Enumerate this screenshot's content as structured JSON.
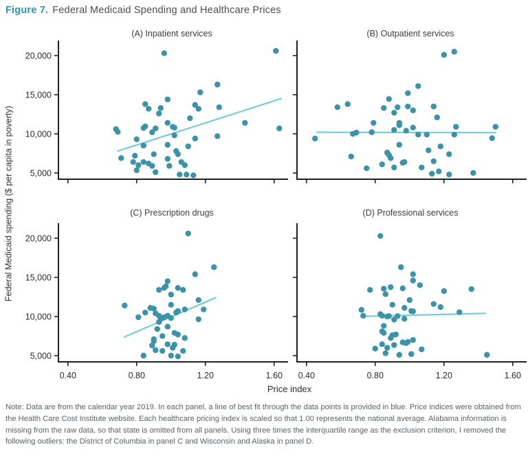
{
  "title": {
    "prefix": "Figure 7.",
    "text": "Federal Medicaid Spending and Healthcare Prices"
  },
  "note": "Note: Data are from the calendar year 2019. In each panel, a line of best fit through the data points is provided in blue. Price indices were obtained from the Health Care Cost Institute website. Each healthcare pricing index is scaled so that 1.00 represents the national average. Alabama information is missing from the raw data, so that state is omitted from all panels. Using three times the interquartile range as the exclusion criterion, I removed the following outliers: the District of Columbia in panel C and Wisconsin and Alaska in panel D.",
  "chart_data": {
    "type": "scatter",
    "layout": "2x2-grid",
    "xlabel": "Price index",
    "ylabel": "Federal Medicaid spending ($ per capita in poverty)",
    "x_ticks": [
      0.4,
      0.8,
      1.2,
      1.6
    ],
    "x_tick_labels": [
      "0.40",
      "0.80",
      "1.20",
      "1.60"
    ],
    "y_ticks": [
      5000,
      10000,
      15000,
      20000
    ],
    "y_tick_labels": [
      "5,000",
      "10,000",
      "15,000",
      "20,000"
    ],
    "xlim": [
      0.345,
      1.665
    ],
    "ylim": [
      4200,
      21400
    ],
    "grid": false,
    "colors": {
      "point": "#3b92a9",
      "fit_line": "#74cdda",
      "axis": "#1f1f1f",
      "accent": "#2e96ad"
    },
    "panels": [
      {
        "label": "(A) Inpatient services",
        "fit_line": {
          "x": [
            0.69,
            1.64
          ],
          "y": [
            7800,
            14500
          ]
        },
        "points": [
          [
            0.68,
            10600
          ],
          [
            0.69,
            10250
          ],
          [
            0.71,
            6900
          ],
          [
            0.78,
            6400
          ],
          [
            0.79,
            7200
          ],
          [
            0.8,
            9300
          ],
          [
            0.8,
            5350
          ],
          [
            0.81,
            6000
          ],
          [
            0.84,
            10750
          ],
          [
            0.84,
            8500
          ],
          [
            0.84,
            6400
          ],
          [
            0.85,
            13800
          ],
          [
            0.85,
            10950
          ],
          [
            0.87,
            13200
          ],
          [
            0.87,
            6200
          ],
          [
            0.89,
            10200
          ],
          [
            0.89,
            5900
          ],
          [
            0.9,
            7400
          ],
          [
            0.91,
            10700
          ],
          [
            0.91,
            5100
          ],
          [
            0.93,
            12600
          ],
          [
            0.94,
            13300
          ],
          [
            0.96,
            20300
          ],
          [
            0.98,
            14400
          ],
          [
            0.98,
            11400
          ],
          [
            0.98,
            8600
          ],
          [
            0.98,
            6800
          ],
          [
            0.99,
            5900
          ],
          [
            1.01,
            10900
          ],
          [
            1.02,
            10800
          ],
          [
            1.02,
            9800
          ],
          [
            1.03,
            7800
          ],
          [
            1.04,
            7400
          ],
          [
            1.05,
            4800
          ],
          [
            1.06,
            6400
          ],
          [
            1.08,
            6000
          ],
          [
            1.09,
            4800
          ],
          [
            1.1,
            8400
          ],
          [
            1.11,
            12000
          ],
          [
            1.13,
            4700
          ],
          [
            1.14,
            13700
          ],
          [
            1.14,
            9400
          ],
          [
            1.16,
            13200
          ],
          [
            1.17,
            15300
          ],
          [
            1.27,
            16300
          ],
          [
            1.27,
            9700
          ],
          [
            1.28,
            13400
          ],
          [
            1.43,
            11400
          ],
          [
            1.61,
            20600
          ],
          [
            1.63,
            10700
          ]
        ]
      },
      {
        "label": "(B) Outpatient services",
        "fit_line": {
          "x": [
            0.46,
            1.5
          ],
          "y": [
            10200,
            10150
          ]
        },
        "points": [
          [
            0.45,
            9400
          ],
          [
            0.58,
            13400
          ],
          [
            0.64,
            13800
          ],
          [
            0.66,
            7100
          ],
          [
            0.67,
            10000
          ],
          [
            0.69,
            10150
          ],
          [
            0.75,
            5600
          ],
          [
            0.78,
            10200
          ],
          [
            0.79,
            11400
          ],
          [
            0.84,
            6100
          ],
          [
            0.85,
            13300
          ],
          [
            0.87,
            7600
          ],
          [
            0.88,
            14450
          ],
          [
            0.88,
            7300
          ],
          [
            0.89,
            6900
          ],
          [
            0.91,
            12700
          ],
          [
            0.91,
            10500
          ],
          [
            0.91,
            5700
          ],
          [
            0.93,
            13400
          ],
          [
            0.94,
            11400
          ],
          [
            0.94,
            11100
          ],
          [
            0.94,
            8600
          ],
          [
            0.96,
            6300
          ],
          [
            0.97,
            6400
          ],
          [
            0.98,
            10400
          ],
          [
            0.99,
            15200
          ],
          [
            0.99,
            13500
          ],
          [
            1.02,
            13000
          ],
          [
            1.02,
            10800
          ],
          [
            1.05,
            16100
          ],
          [
            1.05,
            9900
          ],
          [
            1.07,
            5700
          ],
          [
            1.1,
            9900
          ],
          [
            1.11,
            7900
          ],
          [
            1.13,
            4900
          ],
          [
            1.14,
            13500
          ],
          [
            1.14,
            6500
          ],
          [
            1.16,
            12100
          ],
          [
            1.17,
            5200
          ],
          [
            1.18,
            8400
          ],
          [
            1.2,
            20100
          ],
          [
            1.23,
            7400
          ],
          [
            1.23,
            4800
          ],
          [
            1.26,
            20500
          ],
          [
            1.26,
            9900
          ],
          [
            1.27,
            10900
          ],
          [
            1.37,
            5000
          ],
          [
            1.48,
            9450
          ],
          [
            1.5,
            10900
          ]
        ]
      },
      {
        "label": "(C) Prescription drugs",
        "fit_line": {
          "x": [
            0.73,
            1.26
          ],
          "y": [
            7400,
            12400
          ]
        },
        "points": [
          [
            0.73,
            11400
          ],
          [
            0.81,
            9900
          ],
          [
            0.84,
            5000
          ],
          [
            0.85,
            10500
          ],
          [
            0.88,
            11100
          ],
          [
            0.89,
            6300
          ],
          [
            0.9,
            11000
          ],
          [
            0.9,
            7100
          ],
          [
            0.9,
            6850
          ],
          [
            0.91,
            10400
          ],
          [
            0.91,
            5700
          ],
          [
            0.92,
            8400
          ],
          [
            0.93,
            13400
          ],
          [
            0.93,
            10100
          ],
          [
            0.93,
            9300
          ],
          [
            0.94,
            9700
          ],
          [
            0.95,
            7500
          ],
          [
            0.95,
            5600
          ],
          [
            0.96,
            13650
          ],
          [
            0.96,
            9900
          ],
          [
            0.97,
            13850
          ],
          [
            0.98,
            14500
          ],
          [
            0.98,
            10100
          ],
          [
            0.98,
            8700
          ],
          [
            0.98,
            6450
          ],
          [
            1.0,
            12800
          ],
          [
            1.0,
            11500
          ],
          [
            1.0,
            9800
          ],
          [
            1.0,
            5000
          ],
          [
            1.01,
            6000
          ],
          [
            1.02,
            7900
          ],
          [
            1.02,
            6400
          ],
          [
            1.03,
            10500
          ],
          [
            1.04,
            13650
          ],
          [
            1.04,
            10700
          ],
          [
            1.04,
            7700
          ],
          [
            1.04,
            4900
          ],
          [
            1.07,
            13400
          ],
          [
            1.07,
            5600
          ],
          [
            1.08,
            10900
          ],
          [
            1.08,
            7250
          ],
          [
            1.1,
            20600
          ],
          [
            1.14,
            15400
          ],
          [
            1.16,
            12100
          ],
          [
            1.16,
            9650
          ],
          [
            1.19,
            10900
          ],
          [
            1.25,
            16300
          ]
        ]
      },
      {
        "label": "(D) Professional services",
        "fit_line": {
          "x": [
            0.72,
            1.44
          ],
          "y": [
            10000,
            10400
          ]
        },
        "points": [
          [
            0.72,
            10850
          ],
          [
            0.73,
            10100
          ],
          [
            0.77,
            13400
          ],
          [
            0.8,
            5900
          ],
          [
            0.83,
            20300
          ],
          [
            0.83,
            10300
          ],
          [
            0.84,
            10100
          ],
          [
            0.84,
            8100
          ],
          [
            0.84,
            6450
          ],
          [
            0.85,
            13550
          ],
          [
            0.85,
            8800
          ],
          [
            0.85,
            7900
          ],
          [
            0.86,
            12850
          ],
          [
            0.86,
            5300
          ],
          [
            0.87,
            10000
          ],
          [
            0.87,
            6000
          ],
          [
            0.88,
            10050
          ],
          [
            0.89,
            13750
          ],
          [
            0.89,
            7250
          ],
          [
            0.9,
            11500
          ],
          [
            0.9,
            7600
          ],
          [
            0.91,
            9600
          ],
          [
            0.91,
            6350
          ],
          [
            0.92,
            7700
          ],
          [
            0.93,
            10050
          ],
          [
            0.94,
            5100
          ],
          [
            0.95,
            16300
          ],
          [
            0.96,
            13600
          ],
          [
            0.96,
            6700
          ],
          [
            0.97,
            11100
          ],
          [
            0.97,
            9700
          ],
          [
            0.98,
            6600
          ],
          [
            0.99,
            6750
          ],
          [
            1.0,
            12100
          ],
          [
            1.01,
            10700
          ],
          [
            1.01,
            5200
          ],
          [
            1.02,
            15400
          ],
          [
            1.02,
            14600
          ],
          [
            1.02,
            10650
          ],
          [
            1.02,
            7000
          ],
          [
            1.06,
            14000
          ],
          [
            1.07,
            5800
          ],
          [
            1.14,
            11600
          ],
          [
            1.18,
            11200
          ],
          [
            1.2,
            13250
          ],
          [
            1.29,
            10550
          ],
          [
            1.36,
            13500
          ],
          [
            1.45,
            5100
          ]
        ]
      }
    ]
  }
}
